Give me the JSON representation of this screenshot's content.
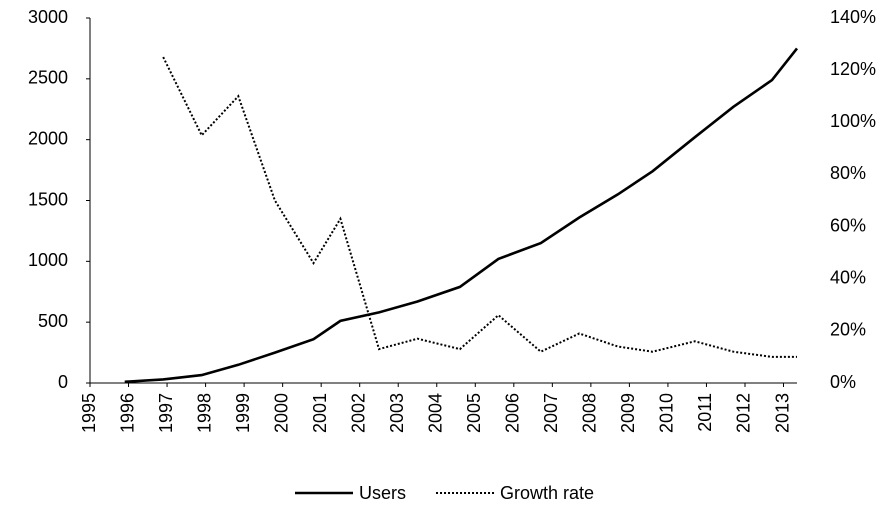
{
  "chart_data": {
    "type": "line",
    "x": [
      1995.9,
      1996.9,
      1997.9,
      1998.85,
      1999.8,
      2000.8,
      2001.5,
      2002.5,
      2003.5,
      2004.6,
      2005.6,
      2006.7,
      2007.7,
      2008.7,
      2009.6,
      2010.7,
      2011.7,
      2012.7,
      2013.35
    ],
    "series": [
      {
        "name": "Users",
        "color": "#000000",
        "style": "solid",
        "axis": "y",
        "values": [
          10,
          30,
          65,
          150,
          250,
          360,
          510,
          580,
          670,
          790,
          1020,
          1150,
          1360,
          1550,
          1740,
          2020,
          2270,
          2490,
          2750
        ]
      },
      {
        "name": "Growth rate",
        "color": "#000000",
        "style": "dotted",
        "axis": "y2",
        "values": [
          null,
          125,
          95,
          110,
          70,
          46,
          63,
          13,
          17,
          13,
          26,
          12,
          19,
          14,
          12,
          16,
          12,
          10,
          10
        ]
      }
    ],
    "xlim": [
      1995,
      2013.35
    ],
    "xticks": [
      1995,
      1996,
      1997,
      1998,
      1999,
      2000,
      2001,
      2002,
      2003,
      2004,
      2005,
      2006,
      2007,
      2008,
      2009,
      2010,
      2011,
      2012,
      2013
    ],
    "ylim": [
      0,
      3000
    ],
    "yticks": [
      0,
      500,
      1000,
      1500,
      2000,
      2500,
      3000
    ],
    "y2lim": [
      0,
      140
    ],
    "y2ticks": [
      {
        "value": 0,
        "label": "0%"
      },
      {
        "value": 20,
        "label": "20%"
      },
      {
        "value": 40,
        "label": "40%"
      },
      {
        "value": 60,
        "label": "60%"
      },
      {
        "value": 80,
        "label": "80%"
      },
      {
        "value": 100,
        "label": "100%"
      },
      {
        "value": 120,
        "label": "120%"
      },
      {
        "value": 140,
        "label": "140%"
      }
    ],
    "grid": false,
    "legend": "bottom"
  }
}
